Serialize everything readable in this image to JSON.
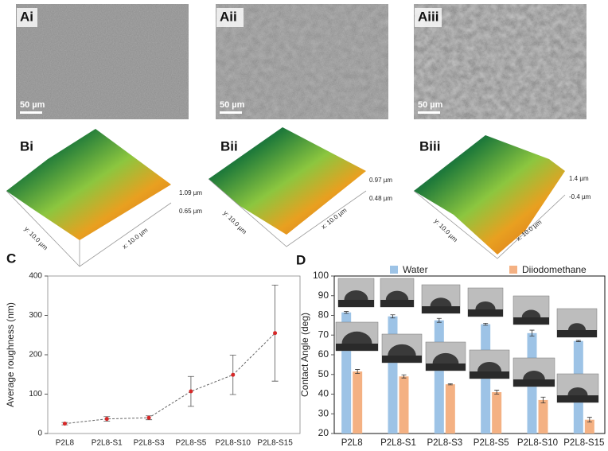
{
  "panels": {
    "a": [
      "Ai",
      "Aii",
      "Aiii"
    ],
    "scale_bar": [
      "50 µm",
      "50 µm",
      "50 µm"
    ],
    "b": [
      "Bi",
      "Bii",
      "Biii"
    ],
    "b_z": [
      [
        "1.09 µm",
        "0.65 µm"
      ],
      [
        "0.97 µm",
        "0.48 µm"
      ],
      [
        "1.4 µm",
        "-0.4 µm"
      ]
    ],
    "b_y": [
      "y: 10.0 µm",
      "y: 10.0 µm",
      "y: 10.0 µm"
    ],
    "b_x": [
      "x: 10.0 µm",
      "x: 10.0 µm",
      "x: 10.0 µm"
    ],
    "charts": [
      "C",
      "D"
    ]
  },
  "chart_data": [
    {
      "type": "line",
      "ylabel": "Average roughness (nm)",
      "categories": [
        "P2L8",
        "P2L8-S1",
        "P2L8-S3",
        "P2L8-S5",
        "P2L8-S10",
        "P2L8-S15"
      ],
      "values": [
        25,
        37,
        40,
        107,
        149,
        255
      ],
      "errors": [
        3,
        6,
        5,
        38,
        50,
        122
      ],
      "color": "#d62828",
      "line_color": "#666666",
      "ylim": [
        0,
        400
      ],
      "yticks": [
        0,
        100,
        200,
        300,
        400
      ]
    },
    {
      "type": "bar",
      "ylabel": "Contact Angle (deg)",
      "legend": "top",
      "categories": [
        "P2L8",
        "P2L8-S1",
        "P2L8-S3",
        "P2L8-S5",
        "P2L8-S10",
        "P2L8-S15"
      ],
      "series": [
        {
          "name": "Water",
          "color": "#9dc3e6",
          "values": [
            81.5,
            79.5,
            77.5,
            75.5,
            71,
            67
          ],
          "errors": [
            0.5,
            0.8,
            1,
            0.5,
            1.5,
            0.3
          ]
        },
        {
          "name": "Diiodomethane",
          "color": "#f4b183",
          "values": [
            51.5,
            49,
            45,
            41,
            37,
            27
          ],
          "errors": [
            1,
            0.8,
            0.3,
            1,
            1.5,
            1.2
          ]
        }
      ],
      "ylim": [
        20,
        100
      ],
      "yticks": [
        20,
        30,
        40,
        50,
        60,
        70,
        80,
        90,
        100
      ]
    }
  ]
}
